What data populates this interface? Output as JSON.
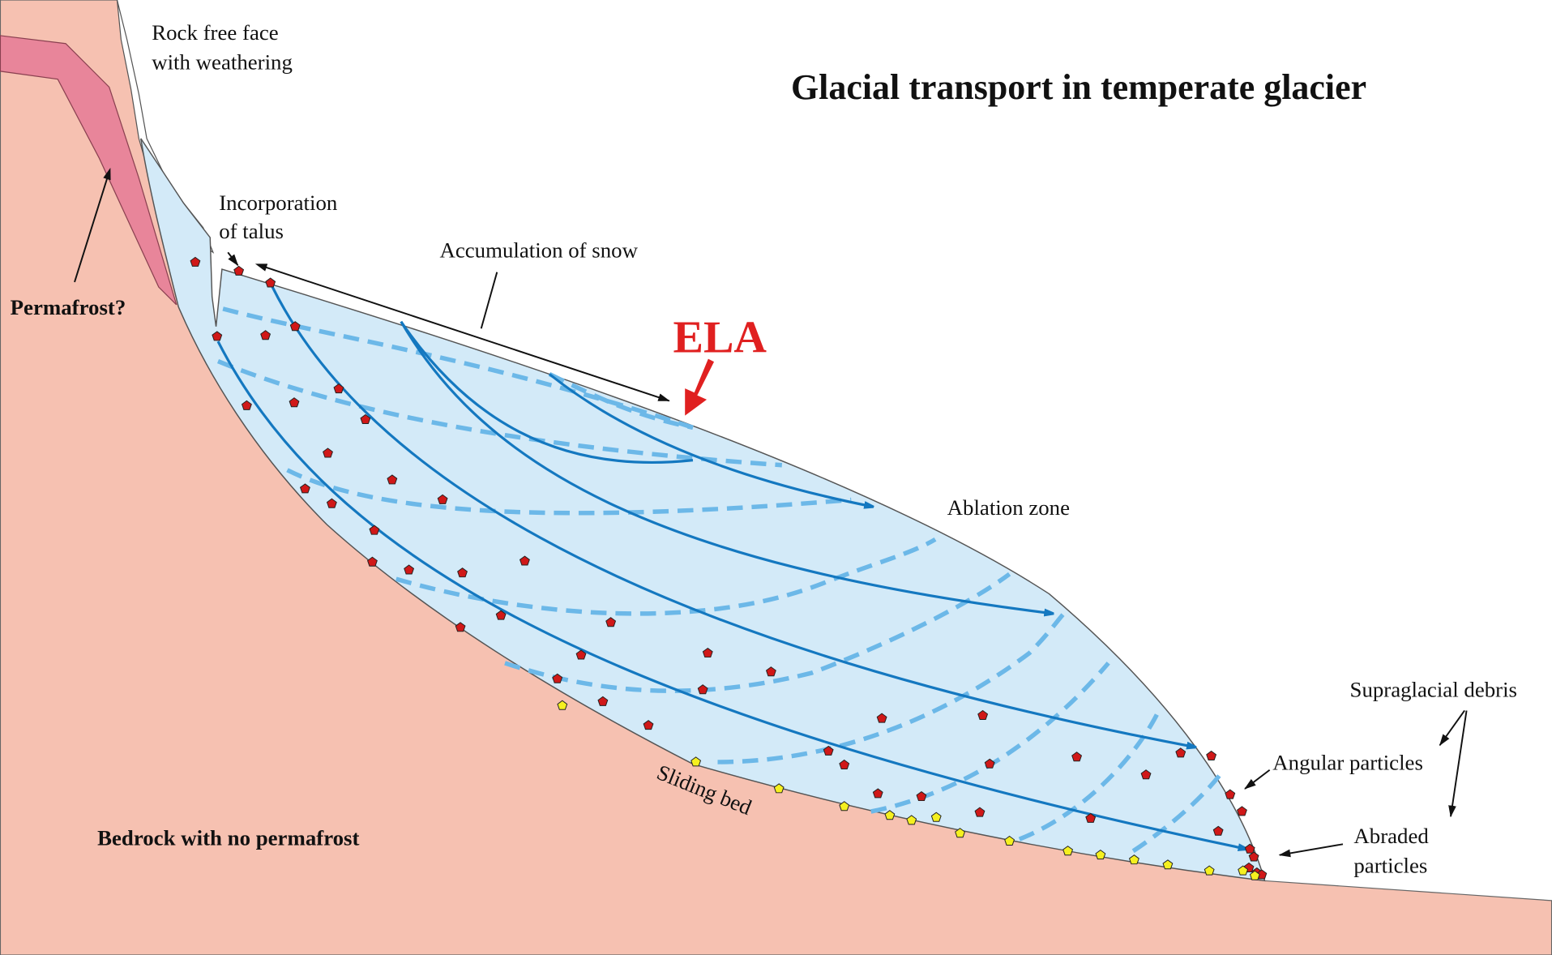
{
  "title": "Glacial transport in temperate glacier",
  "labels": {
    "rock_free_face": [
      "Rock free face",
      "with weathering"
    ],
    "incorporation": [
      "Incorporation",
      "of talus"
    ],
    "accumulation": "Accumulation of snow",
    "ela": "ELA",
    "permafrost": "Permafrost?",
    "ablation": "Ablation zone",
    "bedrock": "Bedrock with no permafrost",
    "sliding_bed": "Sliding bed",
    "supraglacial": "Supraglacial debris",
    "angular": "Angular particles",
    "abraded": [
      "Abraded",
      "particles"
    ]
  }
}
